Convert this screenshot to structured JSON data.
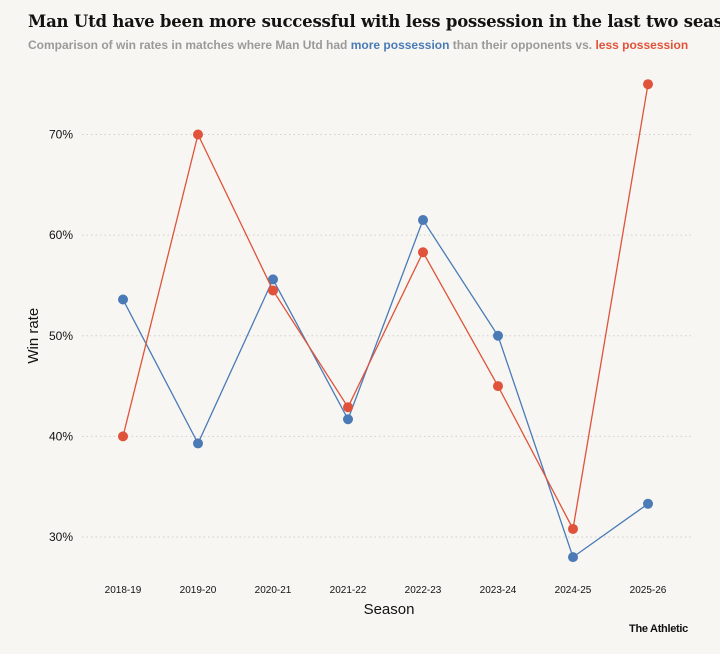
{
  "header": {
    "title": "Man Utd have been more successful with less possession in the last two seasons",
    "subtitle_prefix": "Comparison of win rates in matches where Man Utd had ",
    "subtitle_more": "more possession",
    "subtitle_middle": " than their opponents vs. ",
    "subtitle_less": "less possession"
  },
  "brand": "The Athletic",
  "colors": {
    "more_possession": "#4a7bb7",
    "less_possession": "#e0533a",
    "background": "#f7f6f2"
  },
  "chart_data": {
    "type": "line",
    "xlabel": "Season",
    "ylabel": "Win rate",
    "categories": [
      "2018-19",
      "2019-20",
      "2020-21",
      "2021-22",
      "2022-23",
      "2023-24",
      "2024-25",
      "2025-26"
    ],
    "yticks": [
      30,
      40,
      50,
      60,
      70
    ],
    "ytick_labels": [
      "30%",
      "40%",
      "50%",
      "60%",
      "70%"
    ],
    "ylim": [
      26.5,
      79
    ],
    "grid": true,
    "series": [
      {
        "name": "more possession",
        "color": "#4a7bb7",
        "values": [
          53.6,
          39.3,
          55.6,
          41.7,
          61.5,
          50.0,
          28.0,
          33.3
        ]
      },
      {
        "name": "less possession",
        "color": "#e0533a",
        "values": [
          40.0,
          70.0,
          54.5,
          42.9,
          58.3,
          45.0,
          30.8,
          75.0
        ]
      }
    ]
  }
}
